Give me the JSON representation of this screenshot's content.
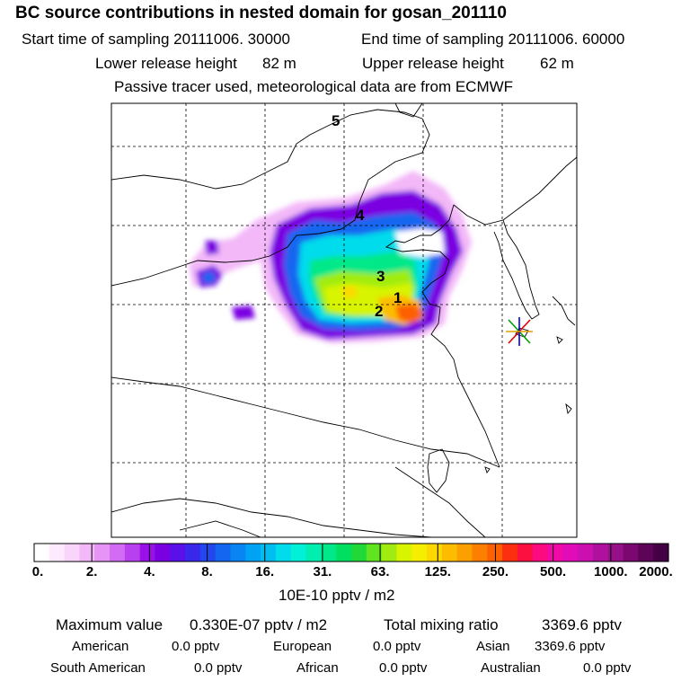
{
  "title": "BC  source contributions in nested domain for gosan_201110",
  "header": {
    "start_label": "Start time of sampling 20111006. 30000",
    "end_label": "End time of sampling 20111006. 60000",
    "lower_label": "Lower release height",
    "lower_value": "82 m",
    "upper_label": "Upper release height",
    "upper_value": "62 m",
    "tracer_note": "Passive tracer used, meteorological data are from ECMWF"
  },
  "map": {
    "source_labels": [
      "1",
      "2",
      "3",
      "4",
      "5"
    ],
    "receptor": "gosan"
  },
  "colorbar": {
    "ticks": [
      "0.",
      "2.",
      "4.",
      "8.",
      "16.",
      "31.",
      "63.",
      "125.",
      "250.",
      "500.",
      "1000.",
      "2000."
    ],
    "units": "10E-10 pptv / m2",
    "colors": [
      "#ffffff",
      "#fdeafd",
      "#f9d4fb",
      "#f3b8f8",
      "#e694f5",
      "#d26cf2",
      "#b840ee",
      "#9a10e8",
      "#7a00e2",
      "#5a10e8",
      "#3a28ea",
      "#2048ee",
      "#1466f0",
      "#0a84f2",
      "#00a2f4",
      "#00bef0",
      "#00dcec",
      "#00f0d8",
      "#00eeb0",
      "#00e888",
      "#00e060",
      "#20d838",
      "#60e420",
      "#a0ec10",
      "#d8f400",
      "#f6ee00",
      "#fcd800",
      "#fcbc00",
      "#fca000",
      "#fc8000",
      "#fc6000",
      "#fc3010",
      "#fc1040",
      "#fc0a80",
      "#f20aa8",
      "#e00cb8",
      "#cc10b0",
      "#b0109e",
      "#961088",
      "#7a0870",
      "#5e0458",
      "#440044"
    ]
  },
  "stats": {
    "max_label": "Maximum value",
    "max_value": "0.330E-07 pptv / m2",
    "total_label": "Total mixing ratio",
    "total_value": "3369.6 pptv"
  },
  "regions": [
    {
      "name": "American",
      "value": "0.0 pptv"
    },
    {
      "name": "European",
      "value": "0.0 pptv"
    },
    {
      "name": "Asian",
      "value": "3369.6 pptv"
    },
    {
      "name": "South American",
      "value": "0.0 pptv"
    },
    {
      "name": "African",
      "value": "0.0 pptv"
    },
    {
      "name": "Australian",
      "value": "0.0 pptv"
    }
  ]
}
